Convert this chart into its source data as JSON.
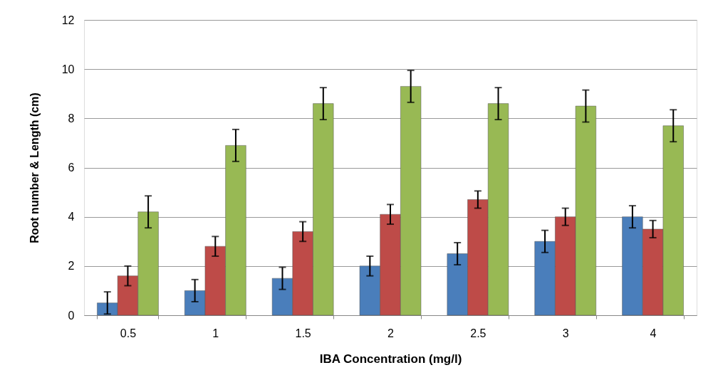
{
  "chart_data": {
    "type": "bar",
    "xlabel": "IBA Concentration (mg/l)",
    "ylabel": "Root number & Length (cm)",
    "categories": [
      "0.5",
      "1",
      "1.5",
      "2",
      "2.5",
      "3",
      "4"
    ],
    "series": [
      {
        "color": "#4a7ebb",
        "values": [
          0.5,
          1,
          1.5,
          2,
          2.5,
          3,
          4
        ],
        "errors": [
          0.45,
          0.45,
          0.45,
          0.4,
          0.45,
          0.45,
          0.45
        ]
      },
      {
        "color": "#be4b48",
        "values": [
          1.6,
          2.8,
          3.4,
          4.1,
          4.7,
          4.0,
          3.5
        ],
        "errors": [
          0.4,
          0.4,
          0.4,
          0.4,
          0.35,
          0.35,
          0.35
        ]
      },
      {
        "color": "#98b954",
        "values": [
          4.2,
          6.9,
          8.6,
          9.3,
          8.6,
          8.5,
          7.7
        ],
        "errors": [
          0.65,
          0.65,
          0.65,
          0.65,
          0.65,
          0.65,
          0.65
        ]
      }
    ],
    "ylim": [
      0,
      12
    ],
    "yticks": [
      0,
      2,
      4,
      6,
      8,
      10,
      12
    ],
    "grid": "y",
    "legend": false
  }
}
